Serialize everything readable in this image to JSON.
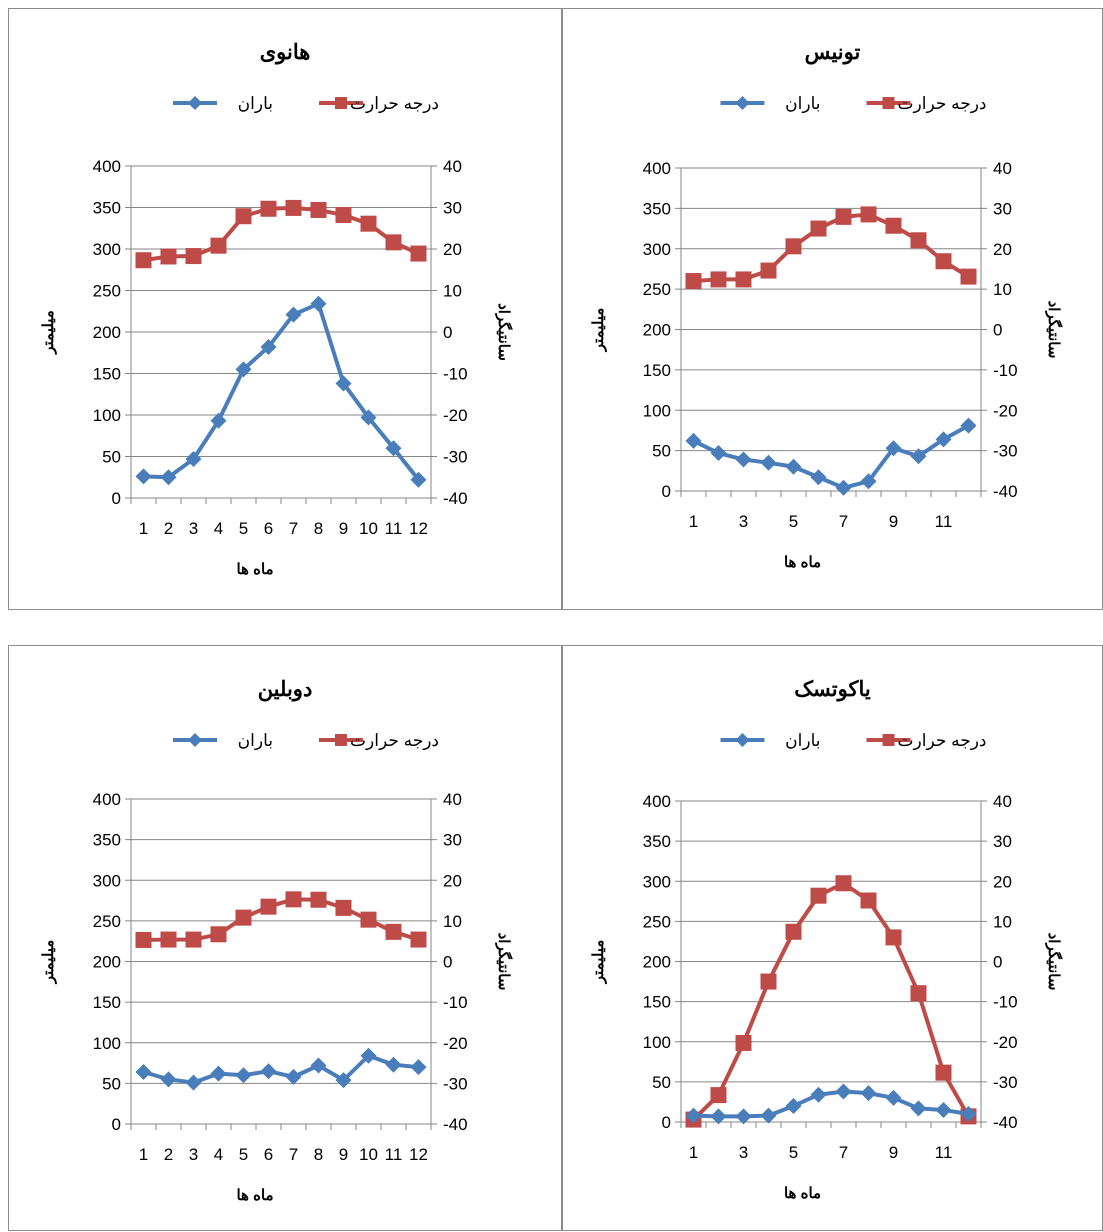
{
  "colors": {
    "rain": "#4a7ebb",
    "temp": "#be4b48"
  },
  "chart_data": [
    {
      "type": "line",
      "title": "هانوی",
      "xlabel": "ماه ها",
      "ylabel": "میلیمتر",
      "y2label": "سانتیگراد",
      "legend": [
        "درجه حرارت",
        "باران"
      ],
      "ylim": [
        0,
        400
      ],
      "y2lim": [
        -40,
        40
      ],
      "yticks": [
        "400",
        "350",
        "300",
        "250",
        "200",
        "150",
        "100",
        "50",
        "0"
      ],
      "y2ticks": [
        "40",
        "30",
        "20",
        "10",
        "0",
        "-10",
        "-20",
        "-30",
        "-40"
      ],
      "xticks": [
        "1",
        "2",
        "3",
        "4",
        "5",
        "6",
        "7",
        "8",
        "9",
        "10",
        "11",
        "12"
      ],
      "x": [
        1,
        2,
        3,
        4,
        5,
        6,
        7,
        8,
        9,
        10,
        11,
        12
      ],
      "series": [
        {
          "name": "باران",
          "axis": "left",
          "values": [
            26,
            25,
            47,
            93,
            155,
            182,
            221,
            234,
            138,
            97,
            60,
            22
          ]
        },
        {
          "name": "درجه حرارت",
          "axis": "right",
          "values": [
            17.3,
            18.2,
            18.3,
            20.8,
            27.9,
            29.7,
            29.9,
            29.4,
            28.2,
            26.1,
            21.6,
            18.9
          ]
        }
      ]
    },
    {
      "type": "line",
      "title": "تونیس",
      "xlabel": "ماه ها",
      "ylabel": "میلیمتر",
      "y2label": "سانتیگراد",
      "legend": [
        "درجه حرارت",
        "باران"
      ],
      "ylim": [
        0,
        400
      ],
      "y2lim": [
        -40,
        40
      ],
      "yticks": [
        "400",
        "350",
        "300",
        "250",
        "200",
        "150",
        "100",
        "50",
        "0"
      ],
      "y2ticks": [
        "40",
        "30",
        "20",
        "10",
        "0",
        "-10",
        "-20",
        "-30",
        "-40"
      ],
      "xticks": [
        "1",
        "3",
        "5",
        "7",
        "9",
        "11"
      ],
      "x": [
        1,
        2,
        3,
        4,
        5,
        6,
        7,
        8,
        9,
        10,
        11,
        12
      ],
      "series": [
        {
          "name": "باران",
          "axis": "left",
          "values": [
            62,
            47,
            39,
            35,
            30,
            17,
            4,
            12,
            53,
            43,
            64,
            81
          ]
        },
        {
          "name": "درجه حرارت",
          "axis": "right",
          "values": [
            12.0,
            12.4,
            12.4,
            14.6,
            20.6,
            25.0,
            27.9,
            28.5,
            25.7,
            22.1,
            16.9,
            13.1
          ]
        }
      ]
    },
    {
      "type": "line",
      "title": "دوبلین",
      "xlabel": "ماه ها",
      "ylabel": "میلیمتر",
      "y2label": "سانتیگراد",
      "legend": [
        "درجه حرارت",
        "باران"
      ],
      "ylim": [
        0,
        400
      ],
      "y2lim": [
        -40,
        40
      ],
      "yticks": [
        "400",
        "350",
        "300",
        "250",
        "200",
        "150",
        "100",
        "50",
        "0"
      ],
      "y2ticks": [
        "40",
        "30",
        "20",
        "10",
        "0",
        "-10",
        "-20",
        "-30",
        "-40"
      ],
      "xticks": [
        "1",
        "2",
        "3",
        "4",
        "5",
        "6",
        "7",
        "8",
        "9",
        "10",
        "11",
        "12"
      ],
      "x": [
        1,
        2,
        3,
        4,
        5,
        6,
        7,
        8,
        9,
        10,
        11,
        12
      ],
      "series": [
        {
          "name": "باران",
          "axis": "left",
          "values": [
            64,
            55,
            51,
            62,
            60,
            65,
            58,
            72,
            54,
            84,
            73,
            70
          ]
        },
        {
          "name": "درجه حرارت",
          "axis": "right",
          "values": [
            5.3,
            5.4,
            5.4,
            6.7,
            10.8,
            13.5,
            15.3,
            15.2,
            13.2,
            10.3,
            7.3,
            5.4
          ]
        }
      ]
    },
    {
      "type": "line",
      "title": "یاکوتسک",
      "xlabel": "ماه ها",
      "ylabel": "میلیمتر",
      "y2label": "سانتیگراد",
      "legend": [
        "درجه حرارت",
        "باران"
      ],
      "ylim": [
        0,
        400
      ],
      "y2lim": [
        -40,
        40
      ],
      "yticks": [
        "400",
        "350",
        "300",
        "250",
        "200",
        "150",
        "100",
        "50",
        "0"
      ],
      "y2ticks": [
        "40",
        "30",
        "20",
        "10",
        "0",
        "-10",
        "-20",
        "-30",
        "-40"
      ],
      "xticks": [
        "1",
        "3",
        "5",
        "7",
        "9",
        "11"
      ],
      "x": [
        1,
        2,
        3,
        4,
        5,
        6,
        7,
        8,
        9,
        10,
        11,
        12
      ],
      "series": [
        {
          "name": "باران",
          "axis": "left",
          "values": [
            8,
            7,
            7,
            8,
            20,
            34,
            38,
            36,
            30,
            17,
            15,
            10
          ]
        },
        {
          "name": "درجه حرارت",
          "axis": "right",
          "values": [
            -39.4,
            -33.3,
            -20.3,
            -5.0,
            7.4,
            16.4,
            19.5,
            15.2,
            6.0,
            -7.9,
            -27.7,
            -38.6
          ]
        }
      ]
    }
  ]
}
